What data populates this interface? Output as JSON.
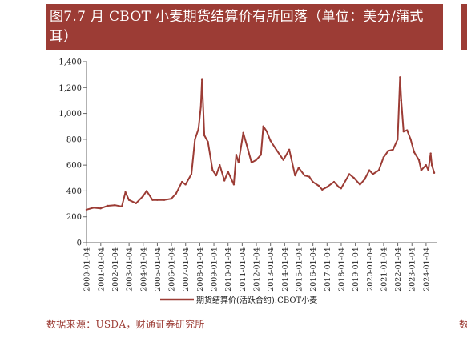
{
  "header": {
    "title": "图7.7 月 CBOT 小麦期货结算价有所回落（单位：美分/蒲式耳）",
    "accent_color": "#9c3c35"
  },
  "footer": {
    "source": "数据来源：USDA，财通证券研究所",
    "edge_char": "数"
  },
  "chart_data": {
    "type": "line",
    "title": "图7.7 月 CBOT 小麦期货结算价有所回落（单位：美分/蒲式耳）",
    "xlabel": "",
    "ylabel": "",
    "ylim": [
      0,
      1400
    ],
    "yticks": [
      "0",
      "200",
      "400",
      "600",
      "800",
      "1,000",
      "1,200",
      "1,400"
    ],
    "xticks": [
      "2000-01-04",
      "2001-01-04",
      "2002-01-04",
      "2003-01-04",
      "2004-01-04",
      "2005-01-04",
      "2006-01-04",
      "2007-01-04",
      "2008-01-04",
      "2009-01-04",
      "2010-01-04",
      "2011-01-04",
      "2012-01-04",
      "2013-01-04",
      "2014-01-04",
      "2015-01-04",
      "2016-01-04",
      "2017-01-04",
      "2018-01-04",
      "2019-01-04",
      "2020-01-04",
      "2021-01-04",
      "2022-01-04",
      "2023-01-04",
      "2024-01-04"
    ],
    "grid": false,
    "legend": "bottom-center",
    "series": [
      {
        "name": "期货结算价(活跃合约):CBOT小麦",
        "color": "#9c3c35",
        "x": [
          "2000-01",
          "2000-07",
          "2001-01",
          "2001-07",
          "2002-01",
          "2002-07",
          "2002-10",
          "2003-01",
          "2003-07",
          "2004-01",
          "2004-04",
          "2004-09",
          "2005-01",
          "2005-07",
          "2006-01",
          "2006-05",
          "2006-10",
          "2007-01",
          "2007-06",
          "2007-09",
          "2007-12",
          "2008-02",
          "2008-03",
          "2008-05",
          "2008-08",
          "2008-12",
          "2009-03",
          "2009-06",
          "2009-10",
          "2010-01",
          "2010-06",
          "2010-08",
          "2010-10",
          "2011-02",
          "2011-06",
          "2011-09",
          "2012-01",
          "2012-05",
          "2012-07",
          "2012-10",
          "2013-01",
          "2013-06",
          "2013-12",
          "2014-05",
          "2014-10",
          "2015-01",
          "2015-06",
          "2015-10",
          "2016-01",
          "2016-06",
          "2016-09",
          "2017-01",
          "2017-07",
          "2017-11",
          "2018-01",
          "2018-08",
          "2018-12",
          "2019-05",
          "2019-09",
          "2020-01",
          "2020-04",
          "2020-09",
          "2021-01",
          "2021-05",
          "2021-09",
          "2022-01",
          "2022-03",
          "2022-04",
          "2022-06",
          "2022-09",
          "2022-12",
          "2023-03",
          "2023-07",
          "2023-09",
          "2024-01",
          "2024-03",
          "2024-05",
          "2024-06",
          "2024-08"
        ],
        "values": [
          255,
          270,
          265,
          285,
          290,
          280,
          390,
          330,
          305,
          360,
          400,
          330,
          330,
          330,
          340,
          380,
          470,
          450,
          530,
          800,
          880,
          1050,
          1260,
          830,
          780,
          560,
          520,
          600,
          480,
          550,
          450,
          680,
          620,
          850,
          720,
          620,
          640,
          680,
          900,
          860,
          790,
          720,
          640,
          720,
          520,
          580,
          520,
          510,
          470,
          440,
          410,
          430,
          470,
          430,
          420,
          530,
          500,
          450,
          490,
          560,
          530,
          560,
          660,
          710,
          720,
          800,
          1280,
          1100,
          860,
          870,
          800,
          700,
          640,
          560,
          600,
          560,
          690,
          600,
          540
        ]
      }
    ]
  }
}
